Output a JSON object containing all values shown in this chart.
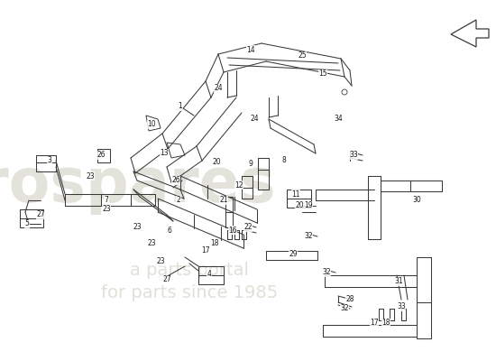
{
  "bg_color": "#ffffff",
  "line_color": "#3a3a3a",
  "text_color": "#1a1a1a",
  "watermark_main": "eurospares",
  "watermark_sub": "a parts portal\nfor parts since 1985",
  "wm_color": "#c8c8b8",
  "figsize": [
    5.5,
    4.0
  ],
  "dpi": 100,
  "labels": [
    [
      "1",
      200,
      118
    ],
    [
      "2",
      198,
      222
    ],
    [
      "3",
      55,
      178
    ],
    [
      "4",
      232,
      303
    ],
    [
      "5",
      30,
      248
    ],
    [
      "6",
      188,
      255
    ],
    [
      "7",
      118,
      222
    ],
    [
      "8",
      315,
      178
    ],
    [
      "9",
      278,
      182
    ],
    [
      "10",
      168,
      138
    ],
    [
      "11",
      328,
      215
    ],
    [
      "12",
      265,
      205
    ],
    [
      "13",
      182,
      170
    ],
    [
      "14",
      278,
      55
    ],
    [
      "15",
      358,
      82
    ],
    [
      "16",
      258,
      255
    ],
    [
      "17",
      228,
      278
    ],
    [
      "17",
      415,
      358
    ],
    [
      "18",
      238,
      270
    ],
    [
      "18",
      428,
      358
    ],
    [
      "19",
      342,
      228
    ],
    [
      "20",
      240,
      180
    ],
    [
      "20",
      332,
      228
    ],
    [
      "21",
      248,
      222
    ],
    [
      "22",
      275,
      252
    ],
    [
      "23",
      100,
      195
    ],
    [
      "23",
      118,
      232
    ],
    [
      "23",
      152,
      252
    ],
    [
      "23",
      168,
      270
    ],
    [
      "23",
      178,
      290
    ],
    [
      "24",
      242,
      98
    ],
    [
      "24",
      282,
      132
    ],
    [
      "25",
      335,
      62
    ],
    [
      "26",
      112,
      172
    ],
    [
      "26",
      195,
      200
    ],
    [
      "27",
      45,
      238
    ],
    [
      "27",
      185,
      310
    ],
    [
      "28",
      388,
      332
    ],
    [
      "29",
      325,
      282
    ],
    [
      "30",
      462,
      222
    ],
    [
      "31",
      442,
      312
    ],
    [
      "32",
      342,
      262
    ],
    [
      "32",
      362,
      302
    ],
    [
      "32",
      382,
      342
    ],
    [
      "33",
      392,
      172
    ],
    [
      "33",
      445,
      340
    ],
    [
      "34",
      375,
      132
    ]
  ]
}
